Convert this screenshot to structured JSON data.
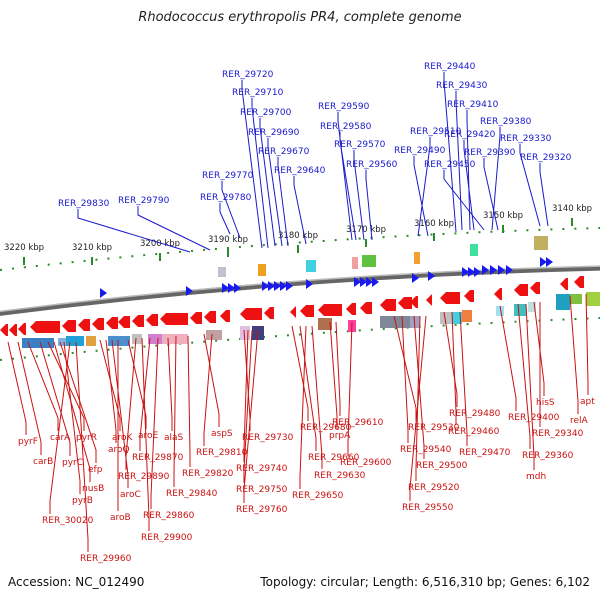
{
  "title": "Rhodococcus erythropolis PR4, complete genome",
  "accession": "Accession: NC_012490",
  "summary": "Topology: circular; Length: 6,516,310 bp; Genes: 6,102",
  "kbp_labels": [
    "3220 kbp",
    "3210 kbp",
    "3200 kbp",
    "3190 kbp",
    "3180 kbp",
    "3170 kbp",
    "3160 kbp",
    "3150 kbp",
    "3140 kbp"
  ],
  "top_labels": [
    "RER_29830",
    "RER_29790",
    "RER_29780",
    "RER_29770",
    "RER_29720",
    "RER_29710",
    "RER_29700",
    "RER_29690",
    "RER_29670",
    "RER_29640",
    "RER_29590",
    "RER_29580",
    "RER_29570",
    "RER_29560",
    "RER_29510",
    "RER_29490",
    "RER_29440",
    "RER_29430",
    "RER_29410",
    "RER_29420",
    "RER_29450",
    "RER_29380",
    "RER_29390",
    "RER_29330",
    "RER_29320"
  ],
  "bottom_labels": [
    "pyrF",
    "carB",
    "carA",
    "pyrC",
    "pyrR",
    "nusB",
    "efp",
    "pyrB",
    "RER_30020",
    "RER_29960",
    "aroK",
    "aroQ",
    "aroC",
    "aroB",
    "aroE",
    "RER_29890",
    "RER_29900",
    "RER_29870",
    "RER_29860",
    "alaS",
    "RER_29840",
    "RER_29820",
    "aspS",
    "RER_29810",
    "RER_29730",
    "RER_29740",
    "RER_29750",
    "RER_29760",
    "RER_29680",
    "RER_29660",
    "RER_29650",
    "RER_29630",
    "prpA",
    "RER_29610",
    "RER_29600",
    "RER_29530",
    "RER_29540",
    "RER_29500",
    "RER_29520",
    "RER_29550",
    "RER_29480",
    "RER_29460",
    "RER_29470",
    "RER_29400",
    "RER_29360",
    "mdh",
    "hisS",
    "RER_29340",
    "relA",
    "apt"
  ],
  "colors": {
    "top_label": "#1a1acc",
    "bottom_label": "#cc1111",
    "forward_gene": "#1a1aee",
    "reverse_gene": "#ee1111",
    "tick": "#2a8a2a",
    "backbone": "#777777"
  }
}
